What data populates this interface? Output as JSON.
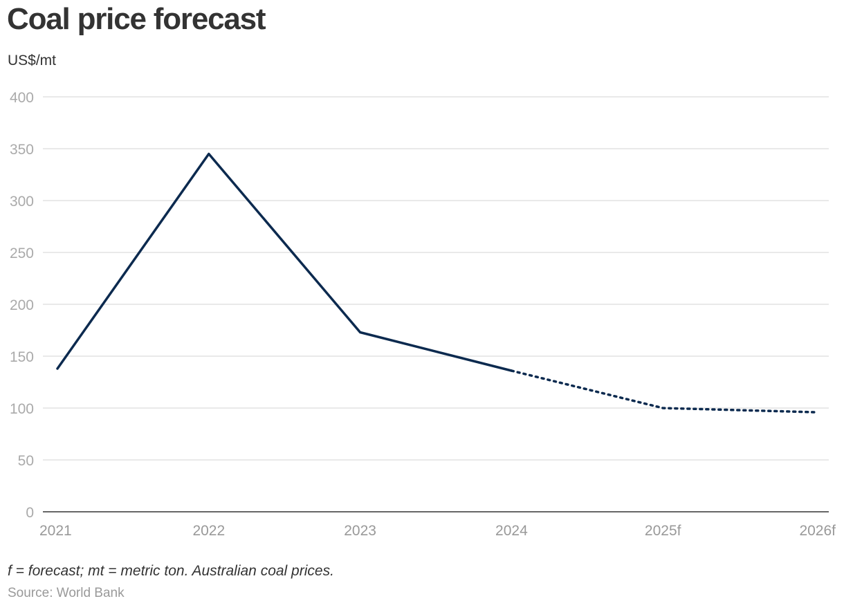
{
  "header": {
    "title": "Coal price forecast",
    "unit_label": "US$/mt"
  },
  "footer": {
    "note": "f = forecast; mt = metric ton. Australian coal prices.",
    "source": "Source: World Bank"
  },
  "chart_data": {
    "type": "line",
    "title": "Coal price forecast",
    "ylabel": "US$/mt",
    "xlabel": "",
    "categories": [
      "2021",
      "2022",
      "2023",
      "2024",
      "2025f",
      "2026f"
    ],
    "ylim": [
      0,
      400
    ],
    "yticks": [
      0,
      50,
      100,
      150,
      200,
      250,
      300,
      350,
      400
    ],
    "grid": true,
    "legend": "none",
    "series": [
      {
        "values": [
          138,
          345,
          173,
          136,
          100,
          96
        ],
        "color": "#0c2a4f",
        "actual_through_index": 3,
        "forecast_style": "dotted"
      }
    ]
  }
}
